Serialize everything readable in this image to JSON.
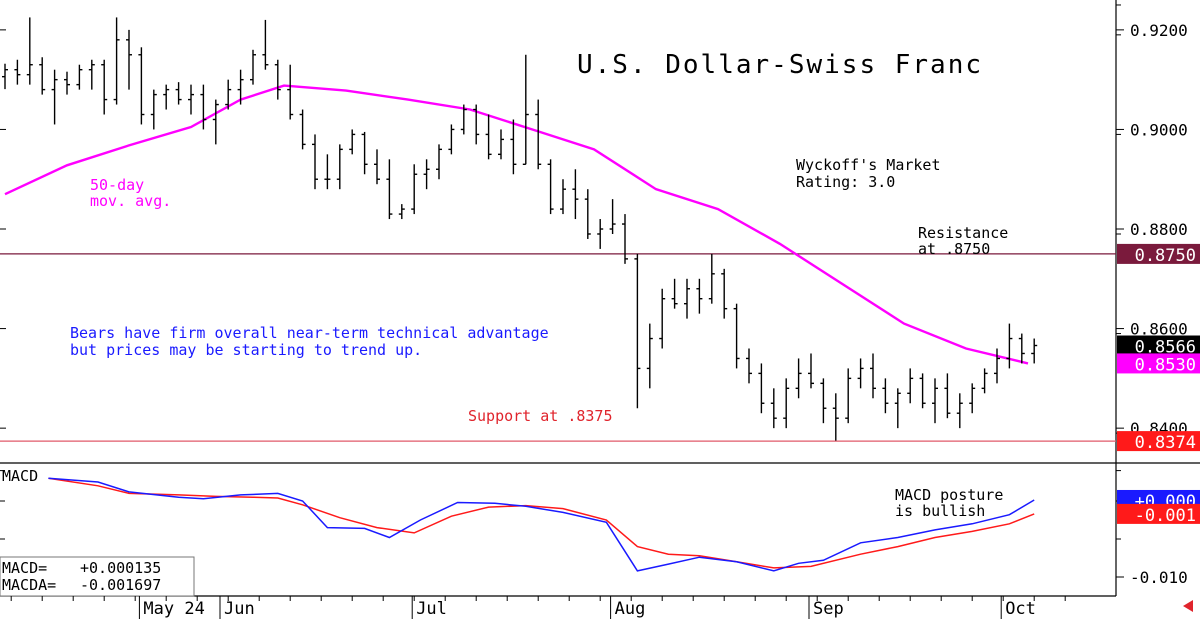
{
  "chart_data": [
    {
      "type": "ohlc",
      "title": "U.S. Dollar-Swiss Franc",
      "xlabel": "",
      "ylabel": "",
      "ylim": [
        0.833,
        0.926
      ],
      "y_ticks": [
        "0.9200",
        "0.9000",
        "0.8800",
        "0.8600",
        "0.8400"
      ],
      "x_months": [
        {
          "label": "May 24",
          "day": 22
        },
        {
          "label": "Jun",
          "day": 35
        },
        {
          "label": "Jul",
          "day": 66
        },
        {
          "label": "Aug",
          "day": 98
        },
        {
          "label": "Sep",
          "day": 130
        },
        {
          "label": "Oct",
          "day": 161
        }
      ],
      "price_levels": [
        {
          "label": "0.8750",
          "value": 0.875,
          "color": "#7a1a3c"
        },
        {
          "label": "0.8566",
          "value": 0.8566,
          "color": "#000000"
        },
        {
          "label": "0.8530",
          "value": 0.853,
          "color": "#ff00ff"
        },
        {
          "label": "0.8374",
          "value": 0.8374,
          "color": "#ff1a1a"
        }
      ],
      "lines": [
        {
          "name": "Resistance",
          "value": 0.875,
          "color": "#7a1a3c"
        },
        {
          "name": "Support",
          "value": 0.8374,
          "color": "#e05a6a"
        }
      ],
      "annotations": {
        "ma_label": [
          "50-day",
          "mov. avg."
        ],
        "rating": [
          "Wyckoff's Market",
          "Rating: 3.0"
        ],
        "resistance": [
          "Resistance",
          "at .8750"
        ],
        "support": "Support at .8375",
        "comment": [
          "Bears have firm overall near-term technical advantage",
          "but prices may be starting to trend up."
        ]
      },
      "colors": {
        "ma": "#ff00ff",
        "bars": "#000000",
        "blue_text": "#1a1aff",
        "support": "#e0242c"
      },
      "moving_average": [
        [
          0,
          0.887
        ],
        [
          10,
          0.8928
        ],
        [
          20,
          0.8968
        ],
        [
          30,
          0.9005
        ],
        [
          38,
          0.906
        ],
        [
          45,
          0.9088
        ],
        [
          55,
          0.9078
        ],
        [
          65,
          0.906
        ],
        [
          75,
          0.904
        ],
        [
          85,
          0.9
        ],
        [
          95,
          0.896
        ],
        [
          105,
          0.888
        ],
        [
          115,
          0.884
        ],
        [
          125,
          0.877
        ],
        [
          135,
          0.869
        ],
        [
          145,
          0.861
        ],
        [
          155,
          0.856
        ],
        [
          165,
          0.853
        ]
      ],
      "ohlc": [
        [
          0,
          0.9106,
          0.9132,
          0.9081,
          0.912
        ],
        [
          2,
          0.912,
          0.914,
          0.909,
          0.911
        ],
        [
          4,
          0.911,
          0.9225,
          0.909,
          0.913
        ],
        [
          6,
          0.913,
          0.9145,
          0.907,
          0.908
        ],
        [
          8,
          0.908,
          0.912,
          0.901,
          0.91
        ],
        [
          10,
          0.91,
          0.9116,
          0.907,
          0.909
        ],
        [
          12,
          0.909,
          0.913,
          0.908,
          0.912
        ],
        [
          14,
          0.912,
          0.914,
          0.908,
          0.913
        ],
        [
          16,
          0.913,
          0.914,
          0.903,
          0.906
        ],
        [
          18,
          0.906,
          0.9225,
          0.905,
          0.918
        ],
        [
          20,
          0.918,
          0.92,
          0.908,
          0.915
        ],
        [
          22,
          0.915,
          0.9165,
          0.901,
          0.903
        ],
        [
          24,
          0.903,
          0.908,
          0.9,
          0.907
        ],
        [
          26,
          0.907,
          0.909,
          0.904,
          0.908
        ],
        [
          28,
          0.908,
          0.9095,
          0.905,
          0.906
        ],
        [
          30,
          0.906,
          0.909,
          0.903,
          0.907
        ],
        [
          32,
          0.907,
          0.909,
          0.9,
          0.902
        ],
        [
          34,
          0.902,
          0.906,
          0.897,
          0.905
        ],
        [
          36,
          0.905,
          0.91,
          0.904,
          0.908
        ],
        [
          38,
          0.908,
          0.912,
          0.905,
          0.91
        ],
        [
          40,
          0.91,
          0.916,
          0.909,
          0.915
        ],
        [
          42,
          0.915,
          0.922,
          0.912,
          0.913
        ],
        [
          44,
          0.913,
          0.914,
          0.906,
          0.908
        ],
        [
          46,
          0.908,
          0.913,
          0.902,
          0.903
        ],
        [
          48,
          0.903,
          0.904,
          0.896,
          0.897
        ],
        [
          50,
          0.897,
          0.899,
          0.888,
          0.89
        ],
        [
          52,
          0.89,
          0.895,
          0.888,
          0.89
        ],
        [
          54,
          0.89,
          0.897,
          0.888,
          0.896
        ],
        [
          56,
          0.896,
          0.9,
          0.895,
          0.899
        ],
        [
          58,
          0.899,
          0.8995,
          0.891,
          0.893
        ],
        [
          60,
          0.893,
          0.896,
          0.889,
          0.89
        ],
        [
          62,
          0.89,
          0.894,
          0.882,
          0.883
        ],
        [
          64,
          0.883,
          0.885,
          0.882,
          0.884
        ],
        [
          66,
          0.884,
          0.893,
          0.883,
          0.891
        ],
        [
          68,
          0.891,
          0.894,
          0.888,
          0.892
        ],
        [
          70,
          0.892,
          0.897,
          0.89,
          0.896
        ],
        [
          72,
          0.896,
          0.901,
          0.895,
          0.9
        ],
        [
          74,
          0.9,
          0.905,
          0.899,
          0.904
        ],
        [
          76,
          0.904,
          0.905,
          0.897,
          0.899
        ],
        [
          78,
          0.899,
          0.903,
          0.894,
          0.895
        ],
        [
          80,
          0.895,
          0.9,
          0.894,
          0.898
        ],
        [
          82,
          0.898,
          0.902,
          0.891,
          0.893
        ],
        [
          84,
          0.893,
          0.915,
          0.893,
          0.903
        ],
        [
          86,
          0.903,
          0.906,
          0.892,
          0.893
        ],
        [
          88,
          0.893,
          0.894,
          0.883,
          0.884
        ],
        [
          90,
          0.884,
          0.89,
          0.883,
          0.888
        ],
        [
          92,
          0.888,
          0.892,
          0.882,
          0.886
        ],
        [
          94,
          0.886,
          0.888,
          0.878,
          0.879
        ],
        [
          96,
          0.879,
          0.882,
          0.876,
          0.88
        ],
        [
          98,
          0.88,
          0.886,
          0.879,
          0.881
        ],
        [
          100,
          0.881,
          0.883,
          0.873,
          0.874
        ],
        [
          102,
          0.874,
          0.875,
          0.844,
          0.852
        ],
        [
          104,
          0.852,
          0.861,
          0.848,
          0.858
        ],
        [
          106,
          0.858,
          0.868,
          0.856,
          0.866
        ],
        [
          108,
          0.866,
          0.87,
          0.864,
          0.865
        ],
        [
          110,
          0.865,
          0.87,
          0.862,
          0.868
        ],
        [
          112,
          0.868,
          0.87,
          0.863,
          0.866
        ],
        [
          114,
          0.866,
          0.875,
          0.865,
          0.871
        ],
        [
          116,
          0.871,
          0.872,
          0.862,
          0.864
        ],
        [
          118,
          0.864,
          0.865,
          0.852,
          0.854
        ],
        [
          120,
          0.854,
          0.856,
          0.849,
          0.851
        ],
        [
          122,
          0.851,
          0.853,
          0.843,
          0.845
        ],
        [
          124,
          0.845,
          0.848,
          0.84,
          0.842
        ],
        [
          126,
          0.842,
          0.85,
          0.84,
          0.848
        ],
        [
          128,
          0.848,
          0.854,
          0.846,
          0.851
        ],
        [
          130,
          0.851,
          0.855,
          0.848,
          0.849
        ],
        [
          132,
          0.849,
          0.85,
          0.841,
          0.844
        ],
        [
          134,
          0.844,
          0.847,
          0.8375,
          0.842
        ],
        [
          136,
          0.842,
          0.852,
          0.841,
          0.85
        ],
        [
          138,
          0.85,
          0.854,
          0.848,
          0.852
        ],
        [
          140,
          0.852,
          0.855,
          0.846,
          0.848
        ],
        [
          142,
          0.848,
          0.85,
          0.843,
          0.845
        ],
        [
          144,
          0.845,
          0.848,
          0.84,
          0.847
        ],
        [
          146,
          0.847,
          0.852,
          0.845,
          0.85
        ],
        [
          148,
          0.85,
          0.851,
          0.844,
          0.845
        ],
        [
          150,
          0.845,
          0.85,
          0.841,
          0.848
        ],
        [
          152,
          0.848,
          0.851,
          0.842,
          0.843
        ],
        [
          154,
          0.843,
          0.847,
          0.84,
          0.845
        ],
        [
          156,
          0.845,
          0.849,
          0.843,
          0.848
        ],
        [
          158,
          0.848,
          0.852,
          0.847,
          0.851
        ],
        [
          160,
          0.851,
          0.856,
          0.849,
          0.854
        ],
        [
          162,
          0.854,
          0.861,
          0.852,
          0.858
        ],
        [
          164,
          0.858,
          0.859,
          0.853,
          0.855
        ],
        [
          166,
          0.855,
          0.858,
          0.853,
          0.8566
        ]
      ]
    },
    {
      "type": "line",
      "title": "MACD",
      "annotation": [
        "MACD posture",
        "is bullish"
      ],
      "ylim": [
        -0.0125,
        0.005
      ],
      "y_ticks": [
        "-0.010"
      ],
      "readouts": [
        {
          "label": "MACD=",
          "value": "+0.000135"
        },
        {
          "label": "MACDA=",
          "value": "-0.001697"
        }
      ],
      "levels": [
        {
          "label": "+0.000",
          "value": 0.000135,
          "color": "#1a1aff"
        },
        {
          "label": "-0.001",
          "value": -0.001697,
          "color": "#ff1a1a"
        }
      ],
      "series": [
        {
          "color": "#1a1aff",
          "values": [
            [
              7,
              0.003
            ],
            [
              15,
              0.0025
            ],
            [
              20,
              0.0012
            ],
            [
              28,
              0.0005
            ],
            [
              32,
              0.0003
            ],
            [
              38,
              0.0008
            ],
            [
              44,
              0.001
            ],
            [
              48,
              0.0
            ],
            [
              52,
              -0.0035
            ],
            [
              58,
              -0.0036
            ],
            [
              62,
              -0.0048
            ],
            [
              67,
              -0.0025
            ],
            [
              73,
              -0.0002
            ],
            [
              79,
              -0.0003
            ],
            [
              84,
              -0.0007
            ],
            [
              90,
              -0.0015
            ],
            [
              97,
              -0.0028
            ],
            [
              102,
              -0.0092
            ],
            [
              107,
              -0.0083
            ],
            [
              112,
              -0.0074
            ],
            [
              118,
              -0.008
            ],
            [
              124,
              -0.0092
            ],
            [
              128,
              -0.0082
            ],
            [
              132,
              -0.0078
            ],
            [
              138,
              -0.0055
            ],
            [
              144,
              -0.0048
            ],
            [
              150,
              -0.0038
            ],
            [
              156,
              -0.003
            ],
            [
              162,
              -0.0018
            ],
            [
              166,
              0.000135
            ]
          ]
        },
        {
          "color": "#ff1a1a",
          "values": [
            [
              7,
              0.003
            ],
            [
              15,
              0.002
            ],
            [
              20,
              0.001
            ],
            [
              28,
              0.0008
            ],
            [
              34,
              0.0006
            ],
            [
              40,
              0.0005
            ],
            [
              44,
              0.0004
            ],
            [
              48,
              -0.0005
            ],
            [
              54,
              -0.0022
            ],
            [
              60,
              -0.0035
            ],
            [
              66,
              -0.0042
            ],
            [
              72,
              -0.002
            ],
            [
              78,
              -0.0008
            ],
            [
              84,
              -0.0006
            ],
            [
              90,
              -0.001
            ],
            [
              97,
              -0.0025
            ],
            [
              102,
              -0.006
            ],
            [
              107,
              -0.007
            ],
            [
              112,
              -0.0072
            ],
            [
              118,
              -0.008
            ],
            [
              124,
              -0.0088
            ],
            [
              130,
              -0.0086
            ],
            [
              138,
              -0.007
            ],
            [
              144,
              -0.006
            ],
            [
              150,
              -0.0048
            ],
            [
              156,
              -0.004
            ],
            [
              162,
              -0.003
            ],
            [
              166,
              -0.001697
            ]
          ]
        }
      ]
    }
  ]
}
